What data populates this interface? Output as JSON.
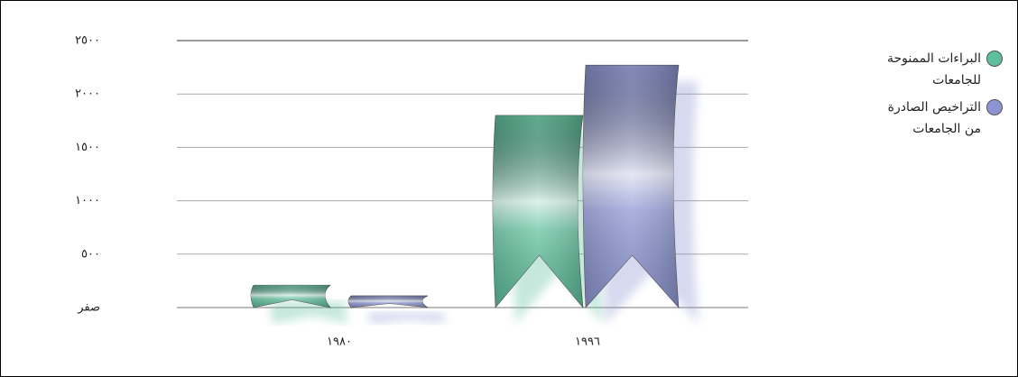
{
  "chart_data": {
    "type": "bar",
    "categories": [
      "١٩٨٠",
      "١٩٩٦"
    ],
    "series": [
      {
        "name": "البراءات الممنوحة للجامعات",
        "color": "#5dbf9c",
        "values": [
          210,
          1800
        ]
      },
      {
        "name": "التراخيص الصادرة من الجامعات",
        "color": "#8c95d2",
        "values": [
          110,
          2270
        ]
      }
    ],
    "ylim": [
      0,
      2500
    ],
    "yticks": [
      {
        "value": 0,
        "label": "صفر"
      },
      {
        "value": 500,
        "label": "٥٠٠"
      },
      {
        "value": 1000,
        "label": "١٠٠٠"
      },
      {
        "value": 1500,
        "label": "١٥٠٠"
      },
      {
        "value": 2000,
        "label": "٢٠٠٠"
      },
      {
        "value": 2500,
        "label": "٢٥٠٠"
      }
    ],
    "grid": true,
    "legend": "right"
  }
}
